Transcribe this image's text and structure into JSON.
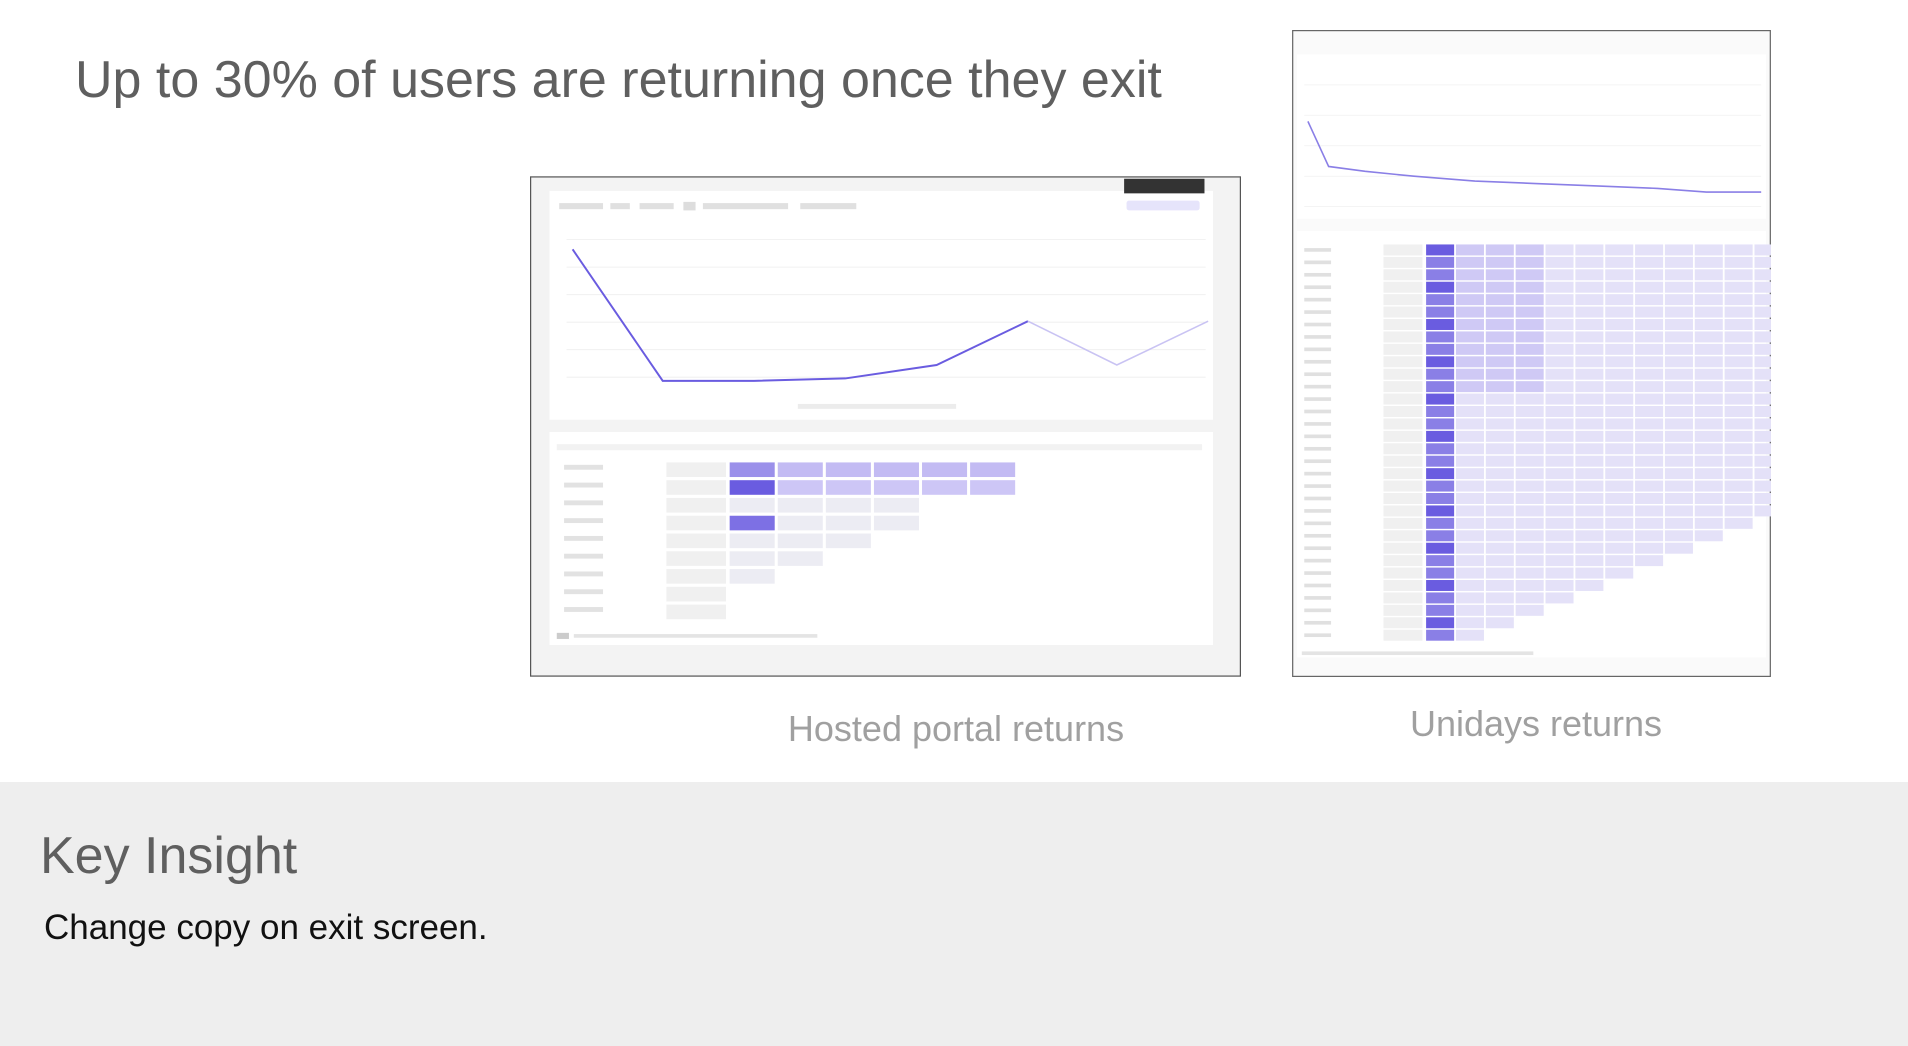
{
  "header": {
    "title": "Up to 30% of users are returning once they exit"
  },
  "screenshots": [
    {
      "caption": "Hosted portal returns"
    },
    {
      "caption": "Unidays returns"
    }
  ],
  "insight": {
    "title": "Key Insight",
    "body": "Change copy on exit screen."
  }
}
